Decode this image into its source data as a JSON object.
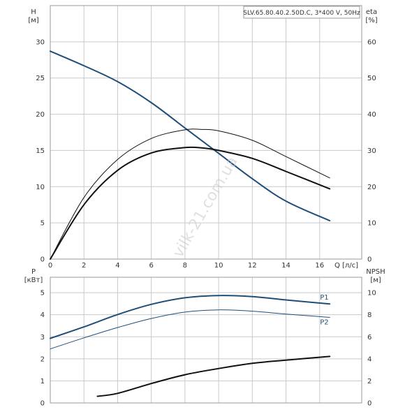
{
  "title": "SLV.65.80.40.2.50D.C, 3*400 V, 50Hz",
  "watermark": "vilk-21.com.ua",
  "colors": {
    "blue": "#1f4e79",
    "black": "#111111",
    "grid": "#c9c9c9"
  },
  "chart_data": [
    {
      "type": "line",
      "xlabel": "Q [л/с]",
      "xlim": [
        0,
        18.5
      ],
      "xticks": [
        0,
        2,
        4,
        6,
        8,
        10,
        12,
        14,
        16
      ],
      "ylabel_left": [
        "H",
        "[м]"
      ],
      "ylim_left": [
        0,
        35
      ],
      "yticks_left": [
        0,
        5,
        10,
        15,
        20,
        25,
        30
      ],
      "ylabel_right": [
        "eta",
        "[%]"
      ],
      "ylim_right": [
        0,
        70
      ],
      "yticks_right": [
        0,
        10,
        20,
        30,
        40,
        50,
        60
      ],
      "grid": true,
      "series": [
        {
          "axis": "left",
          "color": "#1f4e79",
          "width": 2,
          "x": [
            0,
            2,
            4,
            6,
            8,
            10,
            12,
            14,
            16.6
          ],
          "y": [
            28.7,
            26.7,
            24.5,
            21.6,
            18.1,
            14.6,
            11.1,
            8.0,
            5.3
          ]
        },
        {
          "axis": "right",
          "color": "#111111",
          "width": 1,
          "x": [
            0,
            2,
            4,
            6,
            8,
            9,
            10,
            12,
            14,
            16.6
          ],
          "y": [
            0,
            17,
            27.5,
            33.3,
            35.7,
            35.8,
            35.4,
            32.8,
            28.3,
            22.4
          ]
        },
        {
          "axis": "right",
          "color": "#111111",
          "width": 2,
          "x": [
            0,
            2,
            4,
            6,
            8,
            9,
            10,
            12,
            14,
            16.6
          ],
          "y": [
            0,
            15,
            24.5,
            29.3,
            30.8,
            30.7,
            30.0,
            27.8,
            24.2,
            19.4
          ]
        }
      ]
    },
    {
      "type": "line",
      "xlim": [
        0,
        18.5
      ],
      "xticks": [
        0,
        2,
        4,
        6,
        8,
        10,
        12,
        14,
        16
      ],
      "ylabel_left": [
        "P",
        "[кВт]"
      ],
      "ylim_left": [
        0,
        5.7
      ],
      "yticks_left": [
        0,
        1,
        2,
        3,
        4,
        5
      ],
      "ylabel_right": [
        "NPSH",
        "[м]"
      ],
      "ylim_right": [
        0,
        11.4
      ],
      "yticks_right": [
        0,
        2,
        4,
        6,
        8,
        10
      ],
      "grid": true,
      "series": [
        {
          "name": "P1",
          "axis": "left",
          "color": "#1f4e79",
          "width": 2,
          "x": [
            0,
            2,
            4,
            6,
            8,
            10,
            12,
            14,
            16.6
          ],
          "y": [
            2.93,
            3.45,
            4.01,
            4.47,
            4.77,
            4.87,
            4.82,
            4.67,
            4.49
          ]
        },
        {
          "name": "P2",
          "axis": "left",
          "color": "#1f4e79",
          "width": 1,
          "x": [
            0,
            2,
            4,
            6,
            8,
            10,
            12,
            14,
            16.6
          ],
          "y": [
            2.45,
            2.95,
            3.42,
            3.83,
            4.12,
            4.22,
            4.16,
            4.03,
            3.88
          ]
        },
        {
          "axis": "right",
          "color": "#111111",
          "width": 2,
          "x": [
            2.8,
            4,
            6,
            8,
            10,
            12,
            14,
            16.6
          ],
          "y": [
            0.6,
            0.87,
            1.76,
            2.56,
            3.12,
            3.6,
            3.88,
            4.22
          ]
        }
      ]
    }
  ]
}
